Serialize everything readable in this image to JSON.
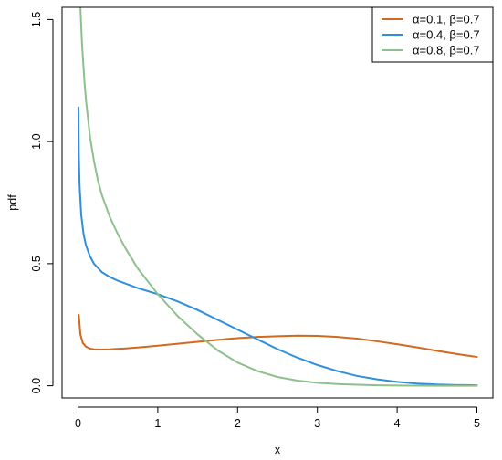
{
  "chart_data": {
    "type": "line",
    "title": "",
    "xlabel": "x",
    "ylabel": "pdf",
    "xlim": [
      -0.2,
      5.2
    ],
    "ylim": [
      -0.05,
      1.55
    ],
    "x_ticks": [
      0,
      1,
      2,
      3,
      4,
      5
    ],
    "x_tick_labels": [
      "0",
      "1",
      "2",
      "3",
      "4",
      "5"
    ],
    "y_ticks": [
      0.0,
      0.5,
      1.0,
      1.5
    ],
    "y_tick_labels": [
      "0.0",
      "0.5",
      "1.0",
      "1.5"
    ],
    "grid": false,
    "legend_position": "top-right",
    "series": [
      {
        "name": "α=0.1, β=0.7",
        "color": "#D2691E",
        "x": [
          0.01,
          0.03,
          0.06,
          0.1,
          0.15,
          0.2,
          0.3,
          0.4,
          0.6,
          0.8,
          1.0,
          1.25,
          1.5,
          1.75,
          2.0,
          2.25,
          2.5,
          2.75,
          3.0,
          3.25,
          3.5,
          3.75,
          4.0,
          4.25,
          4.5,
          4.75,
          5.0
        ],
        "values": [
          0.29,
          0.21,
          0.175,
          0.16,
          0.152,
          0.149,
          0.148,
          0.149,
          0.153,
          0.158,
          0.164,
          0.172,
          0.18,
          0.188,
          0.195,
          0.2,
          0.203,
          0.205,
          0.204,
          0.2,
          0.193,
          0.182,
          0.17,
          0.157,
          0.143,
          0.13,
          0.118
        ]
      },
      {
        "name": "α=0.4, β=0.7",
        "color": "#2E8FDB",
        "x": [
          0.005,
          0.01,
          0.02,
          0.04,
          0.07,
          0.1,
          0.15,
          0.2,
          0.3,
          0.4,
          0.5,
          0.6,
          0.75,
          1.0,
          1.25,
          1.5,
          1.75,
          2.0,
          2.25,
          2.5,
          2.75,
          3.0,
          3.25,
          3.5,
          3.75,
          4.0,
          4.25,
          4.5,
          4.75,
          5.0
        ],
        "values": [
          1.14,
          0.95,
          0.82,
          0.7,
          0.62,
          0.575,
          0.53,
          0.5,
          0.465,
          0.445,
          0.43,
          0.418,
          0.4,
          0.375,
          0.345,
          0.31,
          0.27,
          0.23,
          0.19,
          0.15,
          0.115,
          0.085,
          0.06,
          0.04,
          0.026,
          0.016,
          0.009,
          0.005,
          0.003,
          0.002
        ]
      },
      {
        "name": "α=0.8, β=0.7",
        "color": "#8DC08D",
        "x": [
          0.03,
          0.05,
          0.08,
          0.1,
          0.15,
          0.2,
          0.25,
          0.3,
          0.4,
          0.5,
          0.6,
          0.75,
          1.0,
          1.25,
          1.5,
          1.75,
          2.0,
          2.25,
          2.5,
          2.75,
          3.0,
          3.25,
          3.5,
          3.75,
          4.0,
          4.5,
          5.0
        ],
        "values": [
          1.55,
          1.4,
          1.25,
          1.17,
          1.02,
          0.92,
          0.84,
          0.78,
          0.69,
          0.62,
          0.56,
          0.48,
          0.375,
          0.285,
          0.21,
          0.145,
          0.095,
          0.06,
          0.036,
          0.021,
          0.012,
          0.007,
          0.004,
          0.002,
          0.001,
          0.0,
          0.0
        ]
      }
    ]
  }
}
